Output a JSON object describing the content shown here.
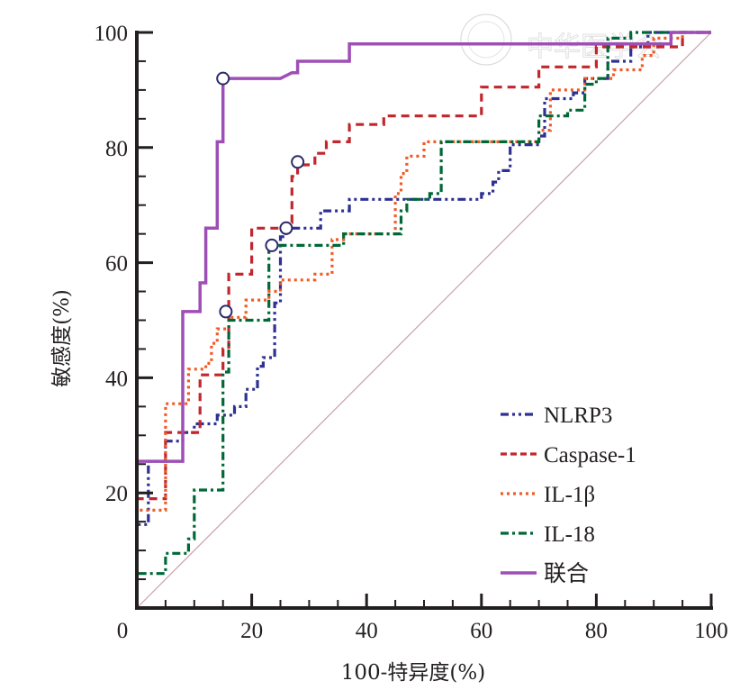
{
  "chart_data": {
    "type": "line",
    "title": "",
    "xlabel": "100-特异度(%)",
    "ylabel": "敏感度(%)",
    "xlim": [
      0,
      100
    ],
    "ylim": [
      0,
      100
    ],
    "x_ticks": [
      0,
      20,
      40,
      60,
      80,
      100
    ],
    "y_ticks": [
      20,
      40,
      60,
      80,
      100
    ],
    "x_tick_labels": [
      "0",
      "20",
      "40",
      "60",
      "80",
      "100"
    ],
    "y_tick_labels": [
      "20",
      "40",
      "60",
      "80",
      "100"
    ],
    "minor_tick_step": 5,
    "grid": false,
    "legend_position": "bottom-right",
    "reference_line": {
      "name": "diagonal",
      "color": "#c9a0a8",
      "points": [
        [
          0,
          0
        ],
        [
          100,
          100
        ]
      ]
    },
    "watermark": "中华医学会",
    "series": [
      {
        "name": "NLRP3",
        "color": "#2e3192",
        "dash": "dash-dot-dot",
        "points": [
          [
            0,
            0
          ],
          [
            0,
            14.5
          ],
          [
            2,
            14.5
          ],
          [
            2,
            25.5
          ],
          [
            5,
            25.5
          ],
          [
            5,
            29
          ],
          [
            8,
            29
          ],
          [
            8,
            30.5
          ],
          [
            10,
            30.5
          ],
          [
            10,
            32
          ],
          [
            14,
            32
          ],
          [
            14,
            33.5
          ],
          [
            17,
            33.5
          ],
          [
            17,
            35
          ],
          [
            19,
            35
          ],
          [
            19,
            38
          ],
          [
            21,
            38
          ],
          [
            21,
            42
          ],
          [
            22,
            42
          ],
          [
            22,
            43.5
          ],
          [
            24,
            43.5
          ],
          [
            24,
            53
          ],
          [
            25,
            53
          ],
          [
            25,
            64.5
          ],
          [
            26,
            64.5
          ],
          [
            26,
            66
          ],
          [
            32,
            66
          ],
          [
            32,
            69
          ],
          [
            37,
            69
          ],
          [
            37,
            71
          ],
          [
            60,
            71
          ],
          [
            60,
            72
          ],
          [
            62,
            72
          ],
          [
            62,
            74
          ],
          [
            63,
            74
          ],
          [
            63,
            76
          ],
          [
            65,
            76
          ],
          [
            65,
            80.5
          ],
          [
            70,
            80.5
          ],
          [
            70,
            82
          ],
          [
            71,
            82
          ],
          [
            71,
            88.5
          ],
          [
            76,
            88.5
          ],
          [
            76,
            89.5
          ],
          [
            78,
            89.5
          ],
          [
            78,
            92
          ],
          [
            82,
            92
          ],
          [
            82,
            95
          ],
          [
            86,
            95
          ],
          [
            86,
            97.5
          ],
          [
            89,
            97.5
          ],
          [
            89,
            100
          ],
          [
            100,
            100
          ]
        ]
      },
      {
        "name": "Caspase-1",
        "color": "#c1272d",
        "dash": "dash",
        "points": [
          [
            0,
            0
          ],
          [
            0,
            19
          ],
          [
            5,
            19
          ],
          [
            5,
            30.5
          ],
          [
            11,
            30.5
          ],
          [
            11,
            40.5
          ],
          [
            15,
            40.5
          ],
          [
            15,
            45
          ],
          [
            16,
            45
          ],
          [
            16,
            58
          ],
          [
            20,
            58
          ],
          [
            20,
            66
          ],
          [
            26,
            66
          ],
          [
            26,
            67
          ],
          [
            27,
            67
          ],
          [
            27,
            75
          ],
          [
            28,
            75
          ],
          [
            28,
            77
          ],
          [
            31,
            77
          ],
          [
            31,
            79
          ],
          [
            33,
            79
          ],
          [
            33,
            81
          ],
          [
            37,
            81
          ],
          [
            37,
            84
          ],
          [
            43,
            84
          ],
          [
            43,
            85.5
          ],
          [
            60,
            85.5
          ],
          [
            60,
            90.5
          ],
          [
            70,
            90.5
          ],
          [
            70,
            94
          ],
          [
            80,
            94
          ],
          [
            80,
            97.5
          ],
          [
            95,
            97.5
          ],
          [
            95,
            100
          ],
          [
            100,
            100
          ]
        ]
      },
      {
        "name": "IL-1β",
        "color": "#f15a24",
        "dash": "dot",
        "points": [
          [
            0,
            0
          ],
          [
            0,
            17
          ],
          [
            5,
            17
          ],
          [
            5,
            35.5
          ],
          [
            9,
            35.5
          ],
          [
            9,
            41.5
          ],
          [
            12,
            41.5
          ],
          [
            12,
            42.5
          ],
          [
            13,
            42.5
          ],
          [
            13,
            46
          ],
          [
            14,
            46
          ],
          [
            14,
            48.5
          ],
          [
            16,
            48.5
          ],
          [
            16,
            50.5
          ],
          [
            19,
            50.5
          ],
          [
            19,
            53.5
          ],
          [
            23,
            53.5
          ],
          [
            23,
            55
          ],
          [
            25,
            55
          ],
          [
            25,
            57
          ],
          [
            31,
            57
          ],
          [
            31,
            58
          ],
          [
            34,
            58
          ],
          [
            34,
            64
          ],
          [
            36,
            64
          ],
          [
            36,
            65
          ],
          [
            45,
            65
          ],
          [
            45,
            72
          ],
          [
            46,
            72
          ],
          [
            46,
            75.5
          ],
          [
            47,
            75.5
          ],
          [
            47,
            78.5
          ],
          [
            50,
            78.5
          ],
          [
            50,
            81
          ],
          [
            70,
            81
          ],
          [
            70,
            83
          ],
          [
            72,
            83
          ],
          [
            72,
            90
          ],
          [
            78,
            90
          ],
          [
            78,
            92
          ],
          [
            83,
            92
          ],
          [
            83,
            93.5
          ],
          [
            88,
            93.5
          ],
          [
            88,
            96
          ],
          [
            90,
            96
          ],
          [
            90,
            99
          ],
          [
            95,
            99
          ],
          [
            95,
            100
          ],
          [
            100,
            100
          ]
        ]
      },
      {
        "name": "IL-18",
        "color": "#006837",
        "dash": "dash-dot",
        "points": [
          [
            0,
            0
          ],
          [
            0,
            6
          ],
          [
            5,
            6
          ],
          [
            5,
            9.5
          ],
          [
            9,
            9.5
          ],
          [
            9,
            12
          ],
          [
            10,
            12
          ],
          [
            10,
            20.5
          ],
          [
            15,
            20.5
          ],
          [
            15,
            41
          ],
          [
            16,
            41
          ],
          [
            16,
            50
          ],
          [
            23,
            50
          ],
          [
            23,
            63
          ],
          [
            36,
            63
          ],
          [
            36,
            65
          ],
          [
            46,
            65
          ],
          [
            46,
            69
          ],
          [
            47,
            69
          ],
          [
            47,
            71
          ],
          [
            51,
            71
          ],
          [
            51,
            72
          ],
          [
            53,
            72
          ],
          [
            53,
            81
          ],
          [
            67,
            81
          ],
          [
            67,
            81
          ],
          [
            70,
            81
          ],
          [
            70,
            85.5
          ],
          [
            75,
            85.5
          ],
          [
            75,
            86.5
          ],
          [
            78,
            86.5
          ],
          [
            78,
            91
          ],
          [
            80,
            91
          ],
          [
            80,
            92
          ],
          [
            82,
            92
          ],
          [
            82,
            99
          ],
          [
            86,
            99
          ],
          [
            86,
            100
          ],
          [
            100,
            100
          ]
        ]
      },
      {
        "name": "联合",
        "color": "#9e4fb5",
        "dash": "solid",
        "points": [
          [
            0,
            0
          ],
          [
            0,
            25.5
          ],
          [
            8,
            25.5
          ],
          [
            8,
            51.5
          ],
          [
            11,
            51.5
          ],
          [
            11,
            56.5
          ],
          [
            12,
            56.5
          ],
          [
            12,
            66
          ],
          [
            14,
            66
          ],
          [
            14,
            81
          ],
          [
            15,
            81
          ],
          [
            15,
            92
          ],
          [
            25,
            92
          ],
          [
            27,
            93
          ],
          [
            28,
            93
          ],
          [
            28,
            95
          ],
          [
            37,
            95
          ],
          [
            37,
            98
          ],
          [
            93,
            98
          ],
          [
            93,
            100
          ],
          [
            100,
            100
          ]
        ]
      }
    ],
    "cutoff_points": [
      {
        "series": "联合",
        "x": 15,
        "y": 92
      },
      {
        "series": "Caspase-1",
        "x": 28,
        "y": 77.5
      },
      {
        "series": "NLRP3",
        "x": 26,
        "y": 66
      },
      {
        "series": "IL-18",
        "x": 23.5,
        "y": 63
      },
      {
        "series": "IL-1β",
        "x": 15.5,
        "y": 51.5
      }
    ]
  }
}
